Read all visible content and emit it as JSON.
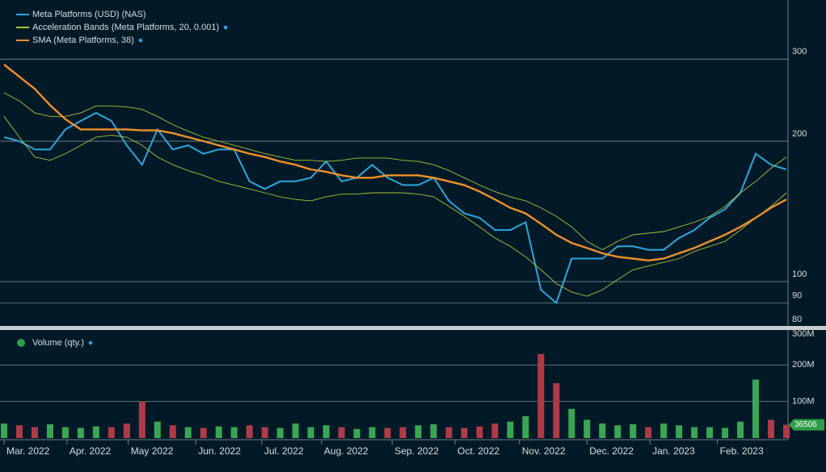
{
  "chart_data": [
    {
      "type": "line",
      "log_scale": true,
      "grid": true,
      "categories": [
        null,
        null,
        null,
        null,
        null,
        null,
        null,
        null,
        null,
        null,
        null,
        null,
        null,
        null,
        null,
        null,
        null,
        null,
        null,
        null,
        null,
        null,
        null,
        null,
        null,
        null,
        null,
        null,
        null,
        null,
        null,
        null,
        null,
        null,
        null,
        null,
        null,
        null,
        null,
        null,
        null,
        null,
        null,
        null,
        null,
        null,
        null,
        null,
        null,
        null,
        null,
        null
      ],
      "xticks": [
        {
          "value": 0,
          "label": "Mar. 2022"
        },
        {
          "value": 4.1,
          "label": "Apr. 2022"
        },
        {
          "value": 8.1,
          "label": "May 2022"
        },
        {
          "value": 12.5,
          "label": "Jun. 2022"
        },
        {
          "value": 16.8,
          "label": "Jul. 2022"
        },
        {
          "value": 20.7,
          "label": "Aug. 2022"
        },
        {
          "value": 25.3,
          "label": "Sep. 2022"
        },
        {
          "value": 29.4,
          "label": "Oct. 2022"
        },
        {
          "value": 33.6,
          "label": "Nov. 2022"
        },
        {
          "value": 38.0,
          "label": "Dec. 2022"
        },
        {
          "value": 42.1,
          "label": "Jan. 2023"
        },
        {
          "value": 46.5,
          "label": "Feb. 2023"
        }
      ],
      "ylim": [
        80,
        400
      ],
      "yticks": [
        300,
        200,
        100,
        90,
        80
      ],
      "series": [
        {
          "name": "Meta Platforms (USD) (NAS)",
          "color": "#2ba6de",
          "values": [
            204,
            200,
            192,
            192,
            212,
            221,
            230,
            221,
            196,
            178,
            212,
            192,
            196,
            188,
            192,
            192,
            164,
            158,
            164,
            164,
            167,
            181,
            164,
            167,
            178,
            167,
            161,
            161,
            167,
            149,
            140,
            137,
            129,
            129,
            134,
            96,
            90,
            112,
            112,
            112,
            119,
            119,
            117,
            117,
            124,
            129,
            137,
            143,
            155,
            188,
            178,
            174
          ]
        },
        {
          "name": "Acceleration Bands (Meta Platforms, 20, 0.001)",
          "color": "#a9c23b",
          "upper": [
            254,
            244,
            230,
            226,
            226,
            230,
            238,
            238,
            237,
            234,
            226,
            217,
            210,
            204,
            200,
            196,
            192,
            188,
            185,
            182,
            182,
            181,
            182,
            184,
            184,
            184,
            182,
            181,
            178,
            173,
            167,
            161,
            156,
            152,
            149,
            144,
            138,
            131,
            122,
            117,
            122,
            126,
            127,
            128,
            131,
            134,
            138,
            145,
            155,
            164,
            175,
            185
          ],
          "lower": [
            226,
            204,
            185,
            182,
            188,
            196,
            204,
            206,
            204,
            196,
            185,
            178,
            173,
            169,
            164,
            161,
            158,
            155,
            152,
            150,
            149,
            152,
            154,
            154,
            155,
            155,
            155,
            154,
            152,
            145,
            138,
            131,
            124,
            119,
            113,
            106,
            99,
            95,
            93,
            96,
            101,
            106,
            108,
            110,
            112,
            116,
            119,
            122,
            129,
            137,
            145,
            155
          ]
        },
        {
          "name": "SMA (Meta Platforms, 38)",
          "color": "#f0902b",
          "values": [
            292,
            275,
            259,
            239,
            223,
            212,
            212,
            212,
            212,
            211,
            211,
            208,
            204,
            200,
            196,
            192,
            188,
            185,
            181,
            178,
            174,
            172,
            169,
            167,
            167,
            169,
            169,
            169,
            167,
            164,
            161,
            156,
            150,
            144,
            140,
            133,
            126,
            121,
            118,
            115,
            113,
            112,
            111,
            112,
            115,
            118,
            122,
            126,
            131,
            137,
            144,
            150
          ]
        }
      ]
    },
    {
      "type": "bar",
      "grid": true,
      "ylim": [
        0,
        300000000
      ],
      "yticks": [
        {
          "value": 300000000,
          "label": "300M"
        },
        {
          "value": 200000000,
          "label": "200M"
        },
        {
          "value": 100000000,
          "label": "100M"
        }
      ],
      "series": [
        {
          "name": "Volume (qty.)",
          "color": "#2e9e4a",
          "up_color": "#3aa655",
          "down_color": "#b03a48",
          "values": [
            40000000,
            35000000,
            30000000,
            38000000,
            30000000,
            28000000,
            32000000,
            30000000,
            40000000,
            100000000,
            45000000,
            35000000,
            30000000,
            28000000,
            32000000,
            30000000,
            35000000,
            30000000,
            28000000,
            40000000,
            30000000,
            35000000,
            30000000,
            25000000,
            30000000,
            28000000,
            30000000,
            35000000,
            38000000,
            30000000,
            28000000,
            32000000,
            40000000,
            45000000,
            60000000,
            230000000,
            150000000,
            80000000,
            50000000,
            40000000,
            35000000,
            38000000,
            30000000,
            40000000,
            35000000,
            30000000,
            30000000,
            28000000,
            45000000,
            160000000,
            50000000,
            36506000
          ]
        }
      ],
      "last_label": "36506"
    }
  ]
}
